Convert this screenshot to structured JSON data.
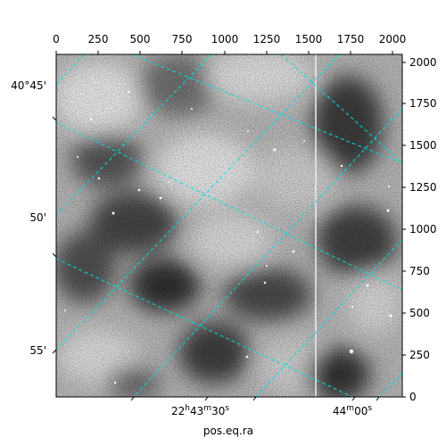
{
  "figure": {
    "xlabel": "pos.eq.ra",
    "top_axis_ticks": [
      "0",
      "250",
      "500",
      "750",
      "1000",
      "1250",
      "1500",
      "1750",
      "2000"
    ],
    "right_axis_ticks": [
      "0",
      "250",
      "500",
      "750",
      "1000",
      "1250",
      "1500",
      "1750",
      "2000"
    ],
    "ra_labels": [
      {
        "h": "22",
        "m": "43",
        "s": "30",
        "sup_h": "h",
        "sup_m": "m",
        "sup_s": "s"
      },
      {
        "m": "44",
        "s": "00",
        "sup_m": "m",
        "sup_s": "s"
      }
    ],
    "dec_labels": [
      "40°45'",
      "50'",
      "55'"
    ],
    "grid_color": "#00e0e0"
  }
}
